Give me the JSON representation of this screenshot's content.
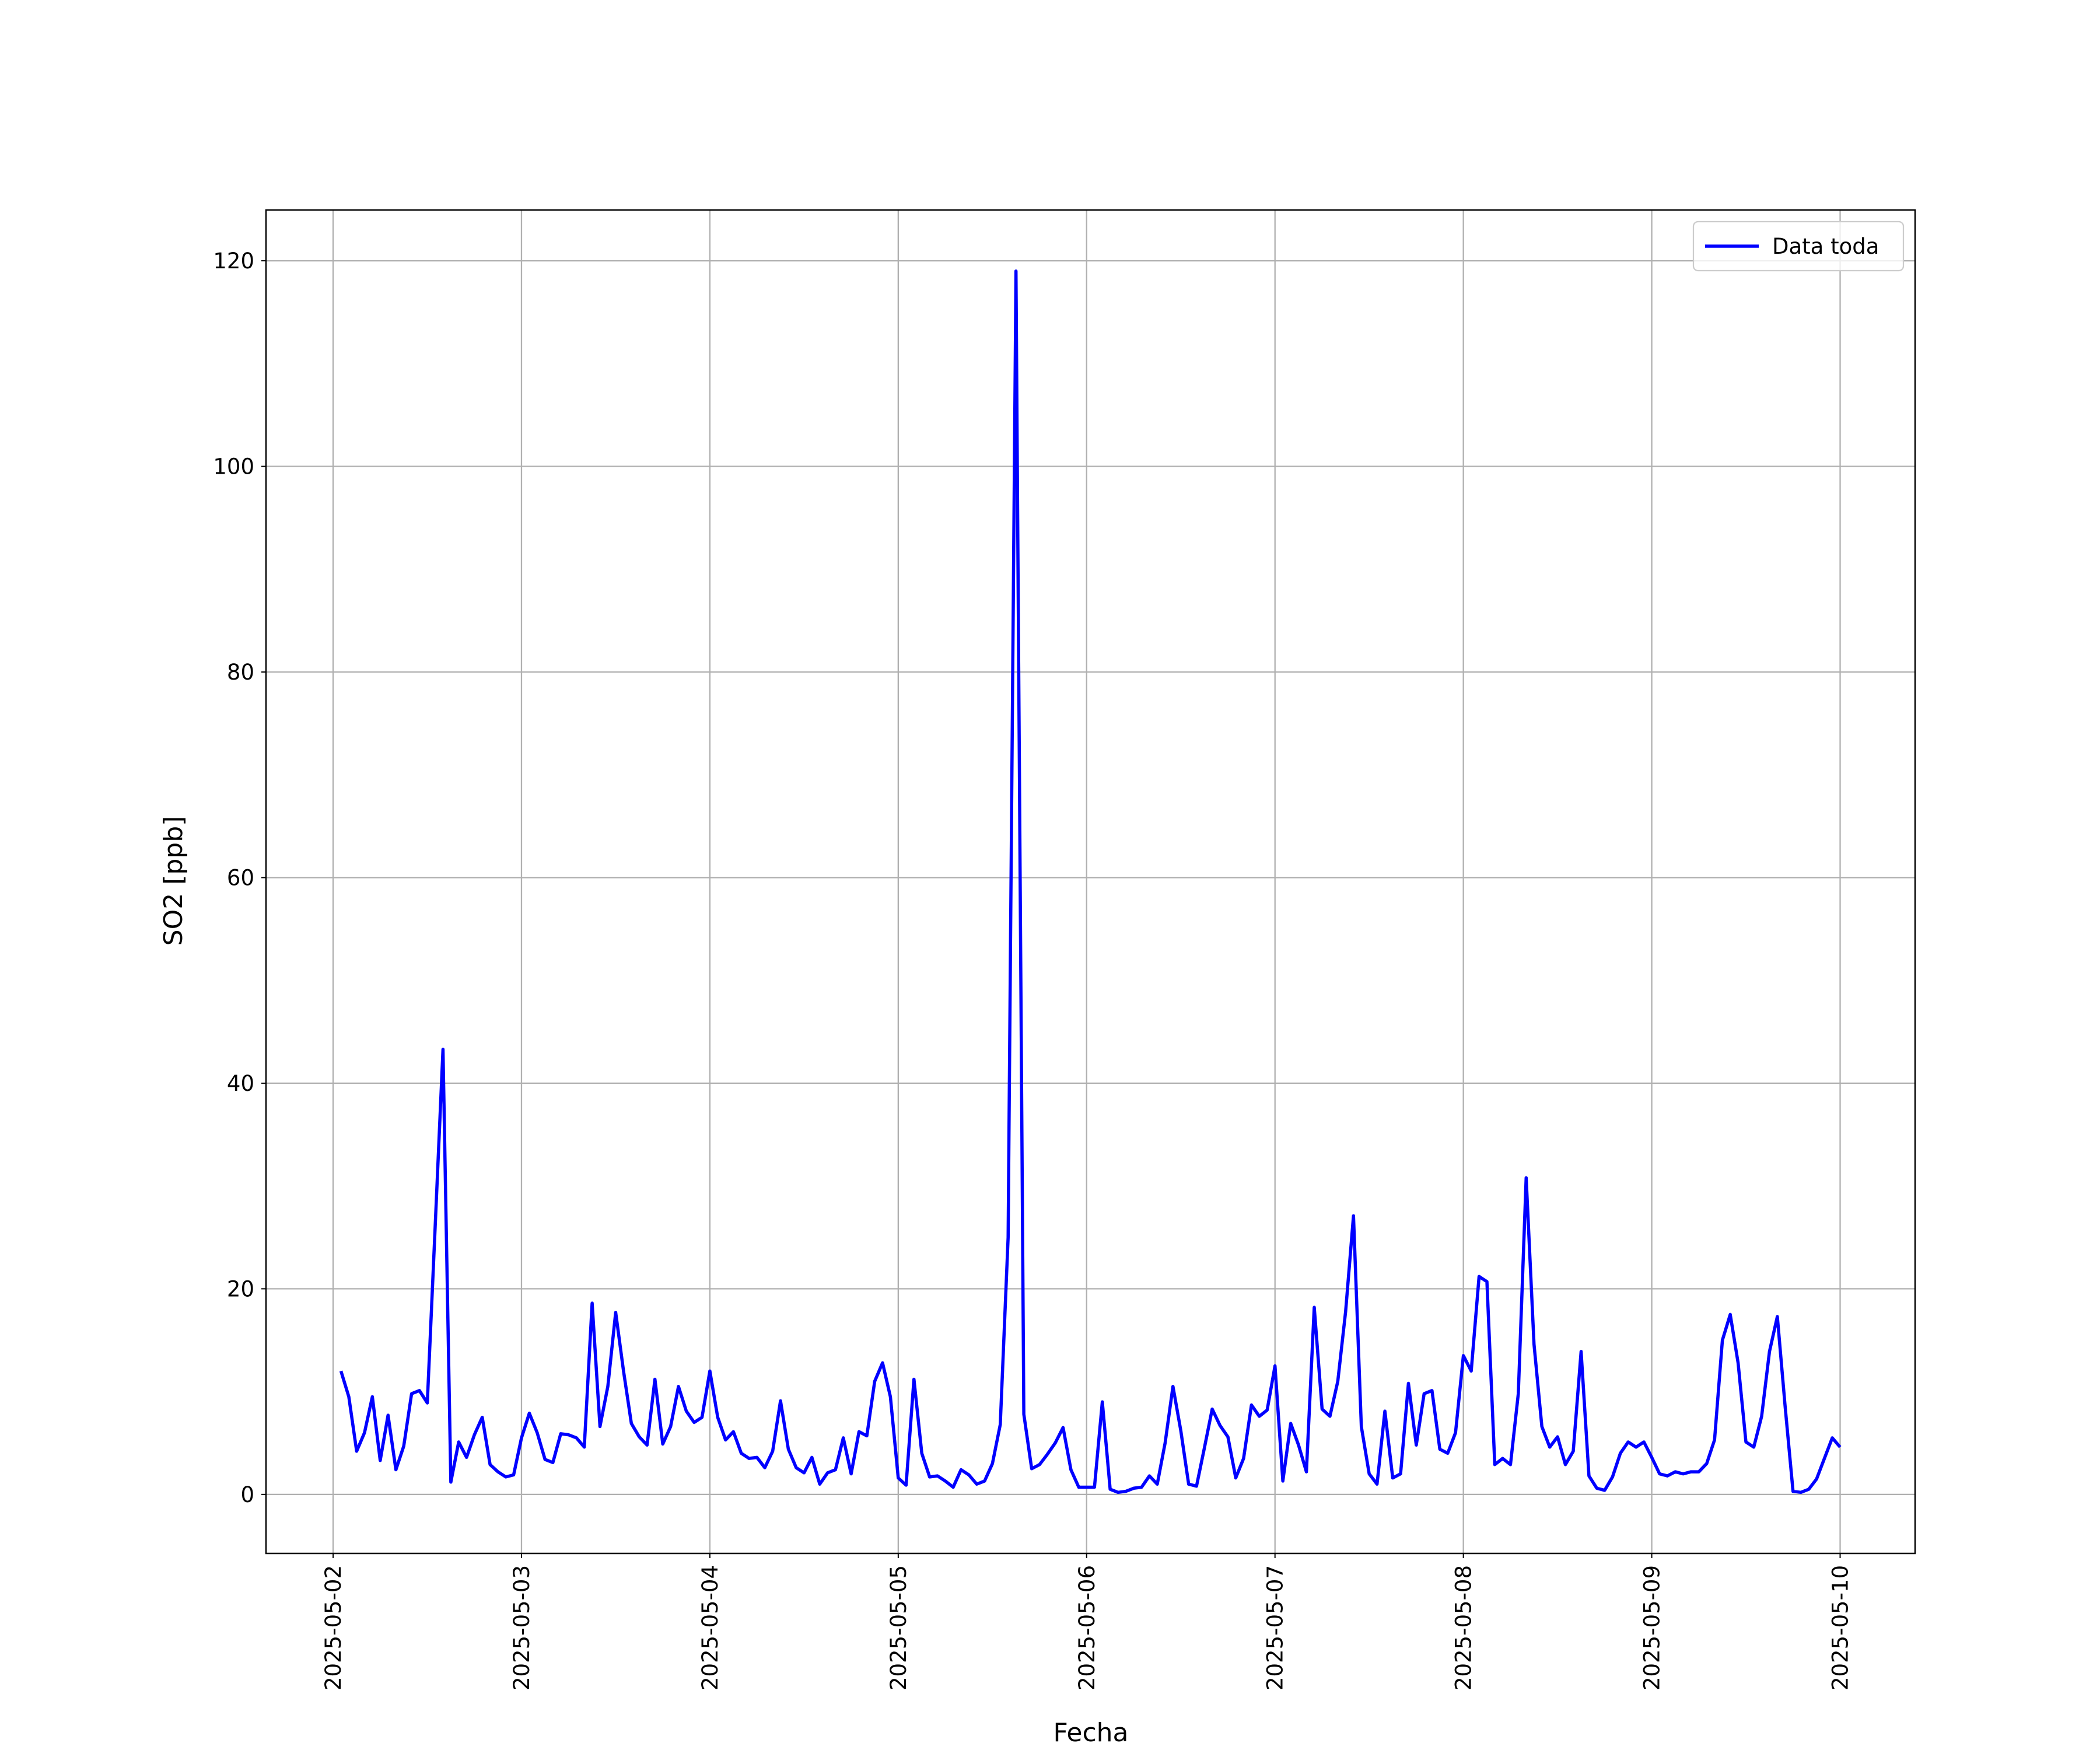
{
  "chart_data": {
    "type": "line",
    "xlabel": "Fecha",
    "ylabel": "SO2 [ppb]",
    "x": [
      "2025-05-02 01:00",
      "2025-05-02 02:00",
      "2025-05-02 03:00",
      "2025-05-02 04:00",
      "2025-05-02 05:00",
      "2025-05-02 06:00",
      "2025-05-02 07:00",
      "2025-05-02 08:00",
      "2025-05-02 09:00",
      "2025-05-02 10:00",
      "2025-05-02 11:00",
      "2025-05-02 12:00",
      "2025-05-02 13:00",
      "2025-05-02 14:00",
      "2025-05-02 15:00",
      "2025-05-02 16:00",
      "2025-05-02 17:00",
      "2025-05-02 18:00",
      "2025-05-02 19:00",
      "2025-05-02 20:00",
      "2025-05-02 21:00",
      "2025-05-02 22:00",
      "2025-05-02 23:00",
      "2025-05-03 00:00",
      "2025-05-03 01:00",
      "2025-05-03 02:00",
      "2025-05-03 03:00",
      "2025-05-03 04:00",
      "2025-05-03 05:00",
      "2025-05-03 06:00",
      "2025-05-03 07:00",
      "2025-05-03 08:00",
      "2025-05-03 09:00",
      "2025-05-03 10:00",
      "2025-05-03 11:00",
      "2025-05-03 12:00",
      "2025-05-03 13:00",
      "2025-05-03 14:00",
      "2025-05-03 15:00",
      "2025-05-03 16:00",
      "2025-05-03 17:00",
      "2025-05-03 18:00",
      "2025-05-03 19:00",
      "2025-05-03 20:00",
      "2025-05-03 21:00",
      "2025-05-03 22:00",
      "2025-05-03 23:00",
      "2025-05-04 00:00",
      "2025-05-04 01:00",
      "2025-05-04 02:00",
      "2025-05-04 03:00",
      "2025-05-04 04:00",
      "2025-05-04 05:00",
      "2025-05-04 06:00",
      "2025-05-04 07:00",
      "2025-05-04 08:00",
      "2025-05-04 09:00",
      "2025-05-04 10:00",
      "2025-05-04 11:00",
      "2025-05-04 12:00",
      "2025-05-04 13:00",
      "2025-05-04 14:00",
      "2025-05-04 15:00",
      "2025-05-04 16:00",
      "2025-05-04 17:00",
      "2025-05-04 18:00",
      "2025-05-04 19:00",
      "2025-05-04 20:00",
      "2025-05-04 21:00",
      "2025-05-04 22:00",
      "2025-05-04 23:00",
      "2025-05-05 00:00",
      "2025-05-05 01:00",
      "2025-05-05 02:00",
      "2025-05-05 03:00",
      "2025-05-05 04:00",
      "2025-05-05 05:00",
      "2025-05-05 06:00",
      "2025-05-05 07:00",
      "2025-05-05 08:00",
      "2025-05-05 09:00",
      "2025-05-05 10:00",
      "2025-05-05 11:00",
      "2025-05-05 12:00",
      "2025-05-05 13:00",
      "2025-05-05 14:00",
      "2025-05-05 15:00",
      "2025-05-05 16:00",
      "2025-05-05 17:00",
      "2025-05-05 18:00",
      "2025-05-05 19:00",
      "2025-05-05 20:00",
      "2025-05-05 21:00",
      "2025-05-05 22:00",
      "2025-05-05 23:00",
      "2025-05-06 00:00",
      "2025-05-06 01:00",
      "2025-05-06 02:00",
      "2025-05-06 03:00",
      "2025-05-06 04:00",
      "2025-05-06 05:00",
      "2025-05-06 06:00",
      "2025-05-06 07:00",
      "2025-05-06 08:00",
      "2025-05-06 09:00",
      "2025-05-06 10:00",
      "2025-05-06 11:00",
      "2025-05-06 12:00",
      "2025-05-06 13:00",
      "2025-05-06 14:00",
      "2025-05-06 15:00",
      "2025-05-06 16:00",
      "2025-05-06 17:00",
      "2025-05-06 18:00",
      "2025-05-06 19:00",
      "2025-05-06 20:00",
      "2025-05-06 21:00",
      "2025-05-06 22:00",
      "2025-05-06 23:00",
      "2025-05-07 00:00",
      "2025-05-07 01:00",
      "2025-05-07 02:00",
      "2025-05-07 03:00",
      "2025-05-07 04:00",
      "2025-05-07 05:00",
      "2025-05-07 06:00",
      "2025-05-07 07:00",
      "2025-05-07 08:00",
      "2025-05-07 09:00",
      "2025-05-07 10:00",
      "2025-05-07 11:00",
      "2025-05-07 12:00",
      "2025-05-07 13:00",
      "2025-05-07 14:00",
      "2025-05-07 15:00",
      "2025-05-07 16:00",
      "2025-05-07 17:00",
      "2025-05-07 18:00",
      "2025-05-07 19:00",
      "2025-05-07 20:00",
      "2025-05-07 21:00",
      "2025-05-07 22:00",
      "2025-05-07 23:00",
      "2025-05-08 00:00",
      "2025-05-08 01:00",
      "2025-05-08 02:00",
      "2025-05-08 03:00",
      "2025-05-08 04:00",
      "2025-05-08 05:00",
      "2025-05-08 06:00",
      "2025-05-08 07:00",
      "2025-05-08 08:00",
      "2025-05-08 09:00",
      "2025-05-08 10:00",
      "2025-05-08 11:00",
      "2025-05-08 12:00",
      "2025-05-08 13:00",
      "2025-05-08 14:00",
      "2025-05-08 15:00",
      "2025-05-08 16:00",
      "2025-05-08 17:00",
      "2025-05-08 18:00",
      "2025-05-08 19:00",
      "2025-05-08 20:00",
      "2025-05-08 21:00",
      "2025-05-08 22:00",
      "2025-05-08 23:00",
      "2025-05-09 00:00",
      "2025-05-09 01:00",
      "2025-05-09 02:00",
      "2025-05-09 03:00",
      "2025-05-09 04:00",
      "2025-05-09 05:00",
      "2025-05-09 06:00",
      "2025-05-09 07:00",
      "2025-05-09 08:00",
      "2025-05-09 09:00",
      "2025-05-09 10:00",
      "2025-05-09 11:00",
      "2025-05-09 12:00",
      "2025-05-09 13:00",
      "2025-05-09 14:00",
      "2025-05-09 15:00",
      "2025-05-09 16:00",
      "2025-05-09 17:00",
      "2025-05-09 18:00",
      "2025-05-09 19:00",
      "2025-05-09 20:00",
      "2025-05-09 21:00",
      "2025-05-09 22:00",
      "2025-05-09 23:00",
      "2025-05-10 00:00"
    ],
    "series": [
      {
        "name": "Data toda",
        "color": "#0000ff",
        "values": [
          12,
          9.5,
          4.2,
          6,
          9.5,
          3.3,
          7.7,
          2.4,
          4.7,
          9.8,
          10.1,
          8.9,
          26,
          43.3,
          1.2,
          5.1,
          3.6,
          5.8,
          7.5,
          2.9,
          2.2,
          1.7,
          1.9,
          5.5,
          7.9,
          6,
          3.4,
          3.1,
          5.9,
          5.8,
          5.5,
          4.6,
          18.6,
          6.6,
          10.5,
          17.7,
          12,
          6.9,
          5.6,
          4.8,
          11.2,
          4.9,
          6.6,
          10.5,
          8.1,
          7,
          7.5,
          12,
          7.5,
          5.3,
          6.1,
          4,
          3.5,
          3.6,
          2.6,
          4.2,
          9.1,
          4.4,
          2.6,
          2.1,
          3.6,
          1,
          2.1,
          2.4,
          5.5,
          2,
          6.1,
          5.7,
          11,
          12.8,
          9.5,
          1.6,
          0.9,
          11.2,
          4,
          1.7,
          1.8,
          1.3,
          0.7,
          2.4,
          1.9,
          1,
          1.3,
          3,
          6.8,
          25,
          119,
          7.8,
          2.5,
          2.9,
          3.9,
          5,
          6.5,
          2.4,
          0.7,
          0.7,
          0.7,
          9,
          0.5,
          0.2,
          0.3,
          0.6,
          0.7,
          1.8,
          1,
          5,
          10.5,
          6.2,
          1,
          0.8,
          4.5,
          8.3,
          6.7,
          5.6,
          1.6,
          3.5,
          8.7,
          7.6,
          8.2,
          12.5,
          1.3,
          6.9,
          4.8,
          2.2,
          18.2,
          8.3,
          7.6,
          11,
          17.8,
          27.1,
          6.6,
          2,
          1,
          8.1,
          1.6,
          2,
          10.8,
          4.8,
          9.8,
          10.1,
          4.4,
          4,
          6,
          13.5,
          12,
          21.2,
          20.7,
          2.9,
          3.5,
          2.9,
          9.8,
          30.8,
          14.6,
          6.6,
          4.6,
          5.6,
          2.9,
          4.2,
          13.9,
          1.8,
          0.6,
          0.4,
          1.7,
          4,
          5.1,
          4.6,
          5.1,
          3.6,
          2,
          1.8,
          2.2,
          2,
          2.2,
          2.2,
          3,
          5.3,
          15,
          17.5,
          12.8,
          5.1,
          4.6,
          7.6,
          13.9,
          17.3,
          8.5,
          0.3,
          0.2,
          0.5,
          1.5,
          3.5,
          5.5,
          4.6
        ]
      }
    ],
    "xlim": [
      "2025-05-01 15:27",
      "2025-05-10 09:33"
    ],
    "xticks": [
      "2025-05-02",
      "2025-05-03",
      "2025-05-04",
      "2025-05-05",
      "2025-05-06",
      "2025-05-07",
      "2025-05-08",
      "2025-05-09",
      "2025-05-10"
    ],
    "ylim": [
      -5.74,
      124.94
    ],
    "yticks": [
      0,
      20,
      40,
      60,
      80,
      100,
      120
    ],
    "grid": true,
    "legend": "upper right"
  }
}
